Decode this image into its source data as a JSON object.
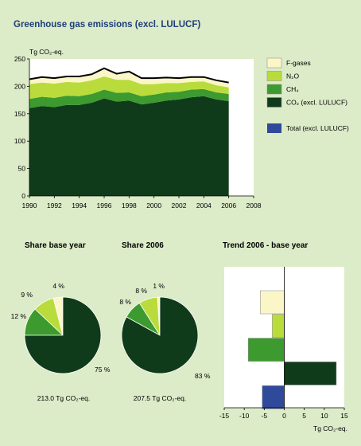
{
  "title": "Greenhouse gas emissions (excl. LULUCF)",
  "chart_data": [
    {
      "type": "area",
      "ylabel": "Tg CO₂-eq.",
      "ylim": [
        0,
        250
      ],
      "yticks": [
        0,
        50,
        100,
        150,
        200,
        250
      ],
      "xlim": [
        1990,
        2008
      ],
      "xticks": [
        1990,
        1992,
        1994,
        1996,
        1998,
        2000,
        2002,
        2004,
        2006,
        2008
      ],
      "grid": false,
      "legend_position": "right",
      "x": [
        1990,
        1991,
        1992,
        1993,
        1994,
        1995,
        1996,
        1997,
        1998,
        1999,
        2000,
        2001,
        2002,
        2003,
        2004,
        2005,
        2006
      ],
      "series": [
        {
          "name": "CO₂ (excl. LULUCF)",
          "color": "#0f3b1b",
          "values": [
            160,
            164,
            162,
            166,
            166,
            170,
            178,
            172,
            174,
            167,
            170,
            174,
            176,
            180,
            182,
            176,
            173
          ]
        },
        {
          "name": "CH₄",
          "color": "#3c9a2e",
          "values": [
            17,
            17,
            17,
            17,
            16,
            16,
            16,
            16,
            15,
            15,
            15,
            15,
            14,
            14,
            13,
            13,
            13
          ]
        },
        {
          "name": "N₂O",
          "color": "#b9dc3c",
          "values": [
            27,
            26,
            26,
            25,
            25,
            25,
            24,
            24,
            23,
            22,
            19,
            17,
            16,
            14,
            14,
            13,
            12
          ]
        },
        {
          "name": "F-gases",
          "color": "#fbf6c8",
          "values": [
            9,
            10,
            10,
            10,
            11,
            11,
            15,
            11,
            15,
            11,
            11,
            10,
            9,
            9,
            8,
            9,
            9
          ]
        }
      ],
      "extra_legend": [
        {
          "name": "Total (excl. LULUCF)",
          "color": "#2f4a9a"
        }
      ]
    },
    {
      "type": "pie",
      "title": "Share base year",
      "caption": "213.0 Tg CO₂-eq.",
      "slices": [
        {
          "name": "CO₂ (excl. LULUCF)",
          "value": 75,
          "label": "75 %",
          "color": "#0f3b1b"
        },
        {
          "name": "CH₄",
          "value": 12,
          "label": "12 %",
          "color": "#3c9a2e"
        },
        {
          "name": "N₂O",
          "value": 9,
          "label": "9 %",
          "color": "#b9dc3c"
        },
        {
          "name": "F-gases",
          "value": 4,
          "label": "4 %",
          "color": "#fbf6c8"
        }
      ]
    },
    {
      "type": "pie",
      "title": "Share 2006",
      "caption": "207.5 Tg CO₂-eq.",
      "slices": [
        {
          "name": "CO₂ (excl. LULUCF)",
          "value": 83,
          "label": "83 %",
          "color": "#0f3b1b"
        },
        {
          "name": "CH₄",
          "value": 8,
          "label": "8 %",
          "color": "#3c9a2e"
        },
        {
          "name": "N₂O",
          "value": 8,
          "label": "8 %",
          "color": "#b9dc3c"
        },
        {
          "name": "F-gases",
          "value": 1,
          "label": "1 %",
          "color": "#fbf6c8"
        }
      ]
    },
    {
      "type": "bar",
      "orientation": "horizontal",
      "title": "Trend 2006 - base year",
      "xlabel": "Tg CO₂-eq.",
      "xlim": [
        -15,
        15
      ],
      "xticks": [
        -15,
        -10,
        -5,
        0,
        5,
        10,
        15
      ],
      "categories": [
        "F-gases",
        "N₂O",
        "CH₄",
        "CO₂ (excl. LULUCF)",
        "Total (excl. LULUCF)"
      ],
      "values": [
        -6,
        -3,
        -9,
        13,
        -5.5
      ],
      "colors": [
        "#fbf6c8",
        "#b9dc3c",
        "#3c9a2e",
        "#0f3b1b",
        "#2f4a9a"
      ]
    }
  ]
}
